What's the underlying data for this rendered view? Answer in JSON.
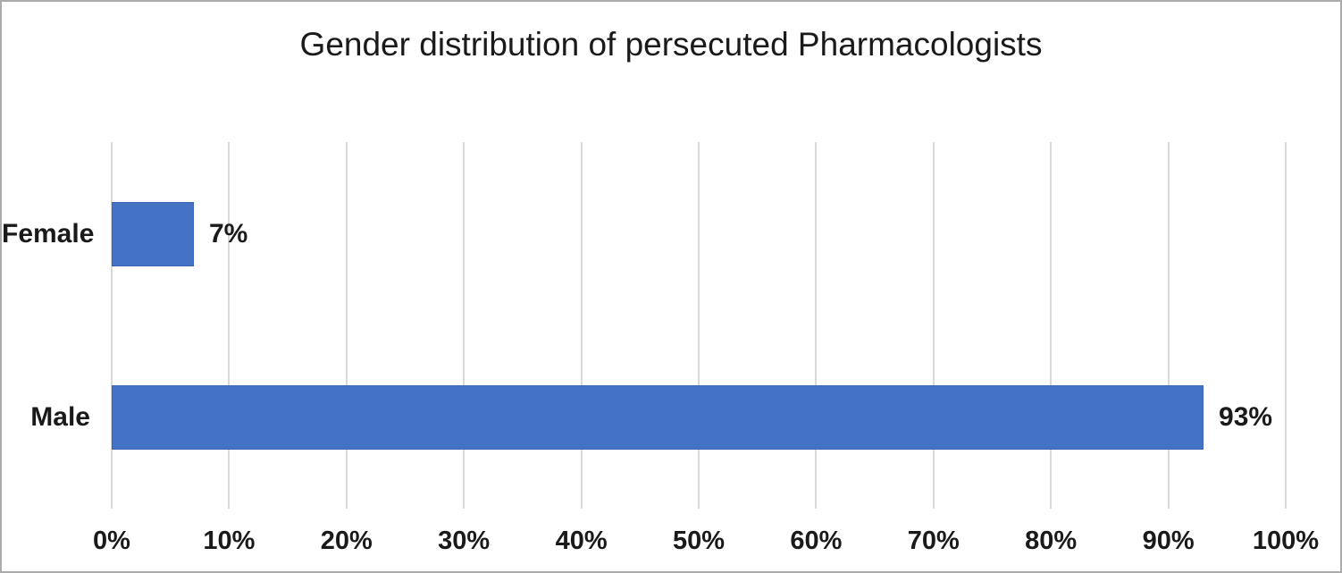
{
  "chart": {
    "title": "Gender distribution of persecuted Pharmacologists"
  },
  "chart_data": {
    "type": "bar",
    "orientation": "horizontal",
    "title": "Gender distribution of persecuted Pharmacologists",
    "categories": [
      "Female",
      "Male"
    ],
    "values": [
      7,
      93
    ],
    "data_labels": [
      "7%",
      "93%"
    ],
    "x_tick_labels": [
      "0%",
      "10%",
      "20%",
      "30%",
      "40%",
      "50%",
      "60%",
      "70%",
      "80%",
      "90%",
      "100%"
    ],
    "x_tick_values": [
      0,
      10,
      20,
      30,
      40,
      50,
      60,
      70,
      80,
      90,
      100
    ],
    "xlim": [
      0,
      100
    ],
    "xlabel": "",
    "ylabel": "",
    "grid": "vertical-only",
    "legend": "none",
    "colors": {
      "bar_fill": "#4472C4",
      "bar_border": "#3A66B4",
      "gridline": "#D9D9D9",
      "frame_border": "#ABABAB",
      "text": "#1A1A1A",
      "background": "#FFFFFF"
    }
  }
}
